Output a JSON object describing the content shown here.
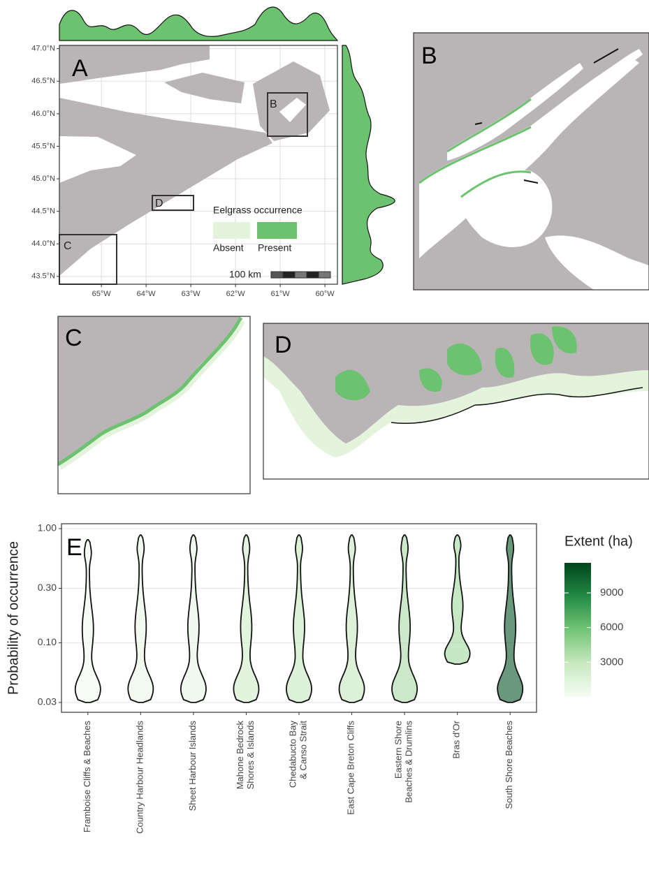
{
  "panels": [
    "B",
    "C",
    "D"
  ],
  "chart_data": [
    {
      "type": "map",
      "panel": "A",
      "xlim": [
        -65.94,
        -59.72
      ],
      "ylim": [
        43.38,
        47.05
      ],
      "xticks": [
        {
          "value": -65,
          "label": "65°W"
        },
        {
          "value": -64,
          "label": "64°W"
        },
        {
          "value": -63,
          "label": "63°W"
        },
        {
          "value": -62,
          "label": "62°W"
        },
        {
          "value": -61,
          "label": "61°W"
        },
        {
          "value": -60,
          "label": "60°W"
        }
      ],
      "yticks": [
        {
          "value": 43.5,
          "label": "43.5°N"
        },
        {
          "value": 44.0,
          "label": "44.0°N"
        },
        {
          "value": 44.5,
          "label": "44.5°N"
        },
        {
          "value": 45.0,
          "label": "45.0°N"
        },
        {
          "value": 45.5,
          "label": "45.5°N"
        },
        {
          "value": 46.0,
          "label": "46.0°N"
        },
        {
          "value": 46.5,
          "label": "46.5°N"
        },
        {
          "value": 47.0,
          "label": "47.0°N"
        }
      ],
      "grid": true,
      "insets": [
        "B",
        "C",
        "D"
      ],
      "legend": {
        "title": "Eelgrass occurrence",
        "entries": [
          {
            "name": "Absent",
            "color": "#e3f3dc"
          },
          {
            "name": "Present",
            "color": "#6cc26f"
          }
        ]
      },
      "scale_bar": "100 km"
    },
    {
      "type": "violin",
      "panel": "E",
      "ylabel": "Probability of occurrence",
      "log_scale": true,
      "ylim": [
        0.0246,
        1.104
      ],
      "yticks": [
        {
          "value": 0.03,
          "label": "0.03"
        },
        {
          "value": 0.1,
          "label": "0.10"
        },
        {
          "value": 0.3,
          "label": "0.30"
        },
        {
          "value": 1,
          "label": "1.00"
        }
      ],
      "grid": true,
      "categories": [
        [
          "Framboise Cliffs & Beaches"
        ],
        [
          "Country Harbour Headlands"
        ],
        [
          "Sheet Harbour Islands"
        ],
        [
          "Mahone Bedrock",
          "Shores & Islands"
        ],
        [
          "Chedabucto Bay",
          "& Canso Strait"
        ],
        [
          "East Cape Breton Cliffs"
        ],
        [
          "Eastern Shore",
          "Beaches & Drumlins"
        ],
        [
          "Bras d'Or"
        ],
        [
          "South Shore Beaches"
        ]
      ],
      "min": [
        0.03,
        0.03,
        0.03,
        0.03,
        0.03,
        0.03,
        0.03,
        0.065,
        0.03
      ],
      "max": [
        0.8,
        0.88,
        0.88,
        0.88,
        0.88,
        0.88,
        0.88,
        0.88,
        0.88
      ],
      "extent": [
        300,
        800,
        1000,
        2500,
        3000,
        3000,
        4000,
        4200,
        11000
      ],
      "colorbar": {
        "title": "Extent (ha)",
        "lim": [
          0,
          11600
        ],
        "ticks": [
          3000,
          6000,
          9000
        ],
        "colors": [
          "#f7fcf5",
          "#c7e9c0",
          "#74c476",
          "#238b45",
          "#00441b"
        ]
      }
    }
  ]
}
